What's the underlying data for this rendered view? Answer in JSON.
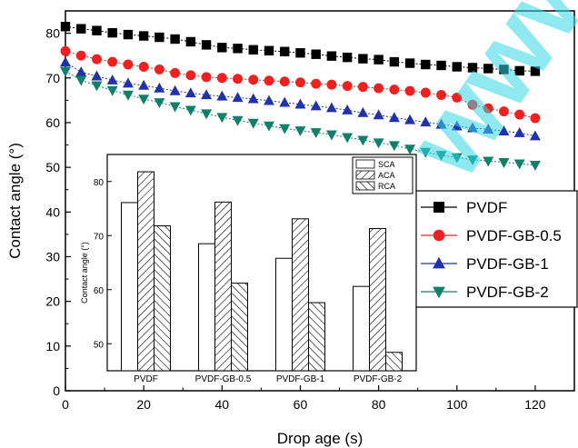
{
  "chart_data": [
    {
      "type": "scatter",
      "xlabel": "Drop age (s)",
      "ylabel": "Contact angle (°)",
      "xlim": [
        0,
        130
      ],
      "ylim": [
        0,
        85
      ],
      "xticks": [
        "0",
        "20",
        "40",
        "60",
        "80",
        "100",
        "120"
      ],
      "yticks": [
        "0",
        "10",
        "20",
        "30",
        "40",
        "50",
        "60",
        "70",
        "80"
      ],
      "legend_position": "right",
      "x": [
        0,
        4,
        8,
        12,
        16,
        20,
        24,
        28,
        32,
        36,
        40,
        44,
        48,
        52,
        56,
        60,
        64,
        68,
        72,
        76,
        80,
        84,
        88,
        92,
        96,
        100,
        104,
        108,
        112,
        116,
        120
      ],
      "series": [
        {
          "name": "PVDF",
          "marker": "square",
          "color": "#000000",
          "values": [
            81.5,
            81,
            80.6,
            80.1,
            79.7,
            79.4,
            79.1,
            78.7,
            78.1,
            77.4,
            76.8,
            76.6,
            76.3,
            76.1,
            75.9,
            75.6,
            75.3,
            74.9,
            74.6,
            74.3,
            74.1,
            73.6,
            73.3,
            73.0,
            72.8,
            72.5,
            72.3,
            72.1,
            71.9,
            71.6,
            71.5
          ]
        },
        {
          "name": "PVDF-GB-0.5",
          "marker": "circle",
          "color": "#ee2020",
          "values": [
            76,
            75,
            74.2,
            73.6,
            73,
            72.5,
            71.9,
            71.1,
            70.6,
            70.2,
            70,
            69.8,
            69.6,
            69.4,
            69.2,
            69,
            68.7,
            68.5,
            68.2,
            68,
            67.7,
            67.4,
            67.1,
            66.7,
            66.2,
            65.6,
            64,
            63.2,
            62.5,
            61.8,
            61
          ]
        },
        {
          "name": "PVDF-GB-1",
          "marker": "triangle-up",
          "color": "#2233aa",
          "values": [
            73.5,
            71.3,
            70.4,
            69.5,
            68.8,
            68.3,
            67.7,
            67.1,
            66.6,
            66.2,
            65.9,
            65.6,
            65.3,
            64.9,
            64.5,
            64.1,
            63.7,
            63.3,
            62.8,
            62.2,
            61.7,
            61.1,
            60.6,
            60.1,
            59.6,
            59.2,
            58.8,
            58.5,
            58.1,
            57.7,
            57
          ]
        },
        {
          "name": "PVDF-GB-2",
          "marker": "triangle-down",
          "color": "#11806a",
          "values": [
            71.5,
            69.5,
            68.3,
            67.2,
            66.2,
            65.3,
            64.5,
            63.6,
            62.8,
            62,
            61.2,
            60.5,
            59.9,
            59.3,
            58.7,
            58.2,
            57.8,
            57.3,
            56.7,
            56.1,
            55.5,
            54.9,
            54.1,
            53.4,
            52.7,
            52.2,
            51.7,
            51.4,
            51.1,
            50.8,
            50.5
          ]
        }
      ]
    },
    {
      "type": "bar",
      "ylabel": "Contact angle (°)",
      "ylim": [
        45,
        85
      ],
      "yticks": [
        "50",
        "60",
        "70",
        "80"
      ],
      "legend_position": "top-right",
      "categories": [
        "PVDF",
        "PVDF-GB-0.5",
        "PVDF-GB-1",
        "PVDF-GB-2"
      ],
      "series": [
        {
          "name": "SCA",
          "pattern": "none",
          "values": [
            76.1,
            68.5,
            65.8,
            60.6
          ]
        },
        {
          "name": "ACA",
          "pattern": "hatch-forward",
          "values": [
            81.8,
            76.2,
            73.1,
            71.3
          ]
        },
        {
          "name": "RCA",
          "pattern": "hatch-backward",
          "values": [
            71.8,
            61.2,
            57.6,
            48.4
          ]
        }
      ]
    }
  ]
}
